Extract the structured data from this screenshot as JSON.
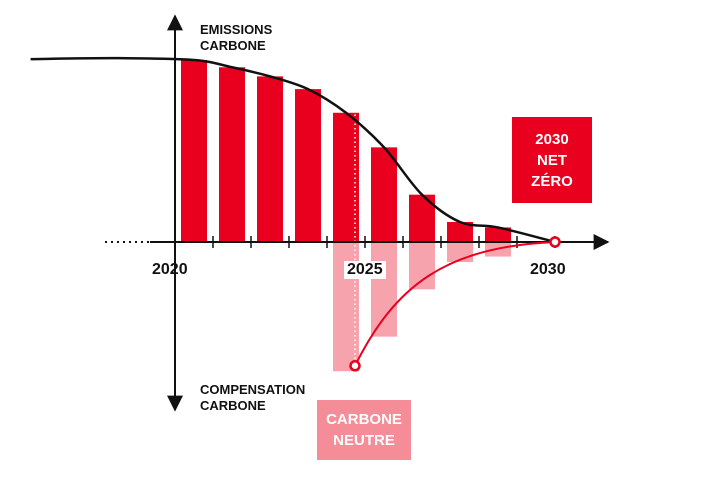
{
  "chart_data": {
    "type": "bar",
    "labels": {
      "y_top": "EMISSIONS\nCARBONE",
      "y_bottom": "COMPENSATION\nCARBONE"
    },
    "x_ticks": [
      "2020",
      "2025",
      "2030"
    ],
    "x_range": [
      2020,
      2030
    ],
    "emissions": [
      {
        "x": 2021,
        "value": 100
      },
      {
        "x": 2022,
        "value": 96
      },
      {
        "x": 2023,
        "value": 91
      },
      {
        "x": 2024,
        "value": 84
      },
      {
        "x": 2025,
        "value": 71
      },
      {
        "x": 2026,
        "value": 52
      },
      {
        "x": 2027,
        "value": 26
      },
      {
        "x": 2028,
        "value": 11
      },
      {
        "x": 2029,
        "value": 8
      }
    ],
    "compensation": [
      {
        "x": 2025,
        "value": -71
      },
      {
        "x": 2026,
        "value": -52
      },
      {
        "x": 2027,
        "value": -26
      },
      {
        "x": 2028,
        "value": -11
      },
      {
        "x": 2029,
        "value": -8
      }
    ],
    "markers": [
      {
        "x": 2025,
        "value": -68
      },
      {
        "x": 2030,
        "value": 0
      }
    ],
    "annotations": {
      "net_zero": "2030\nNET\nZÉRO",
      "carbon_neutral": "CARBONE\nNEUTRE"
    },
    "colors": {
      "emissions": "#e8001e",
      "compensation": "#f7a3ad",
      "net_zero_box": "#e8001e",
      "neutral_box": "#f58d99",
      "curve_emissions": "#111111",
      "curve_compensation": "#e8001e",
      "axis": "#111111"
    }
  }
}
